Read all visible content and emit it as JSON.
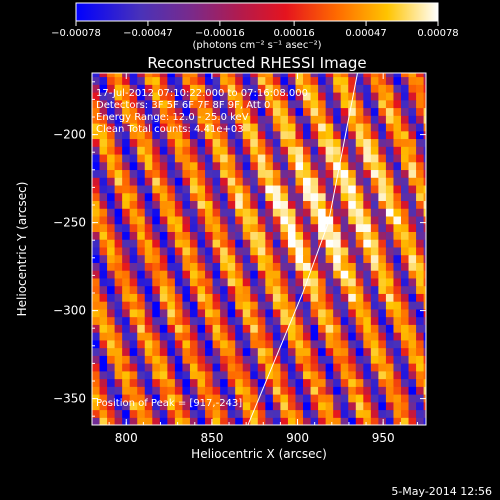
{
  "chart_data": {
    "type": "heatmap",
    "title": "Reconstructed RHESSI Image",
    "xlabel": "Heliocentric X (arcsec)",
    "ylabel": "Heliocentric Y (arcsec)",
    "xlim": [
      780,
      975
    ],
    "ylim": [
      -365,
      -165
    ],
    "x_ticks": [
      800,
      850,
      900,
      950
    ],
    "y_ticks": [
      -200,
      -250,
      -300,
      -350
    ],
    "x_tick_labels": [
      "800",
      "850",
      "900",
      "950"
    ],
    "y_tick_labels": [
      "−200",
      "−250",
      "−300",
      "−350"
    ],
    "colorbar": {
      "ticks": [
        -0.00078,
        -0.00047,
        -0.00016,
        0.00016,
        0.00047,
        0.00078
      ],
      "tick_labels": [
        "−0.00078",
        "−0.00047",
        "−0.00016",
        "0.00016",
        "0.00047",
        "0.00078"
      ],
      "units_line": "(photons cm⁻² s⁻¹ asec⁻²)",
      "range": [
        -0.00078,
        0.00078
      ]
    },
    "annotations": {
      "time_range": "17-Jul-2012 07:10:22.000 to 07:16:08.000",
      "detectors": "Detectors: 3F 5F 6F 7F 8F 9F, Att 0",
      "energy": "Energy Range: 12.0 - 25.0 keV",
      "method": "Clean    Total counts: 4.41e+03",
      "peak": "Position of Peak = [917,-243]"
    },
    "limb_line": [
      [
        871,
        -365
      ],
      [
        903,
        -290
      ],
      [
        918,
        -250
      ],
      [
        935,
        -165
      ]
    ],
    "peak_position": [
      917,
      -243
    ],
    "grid": false,
    "colormap": "blue-purple-red-orange-yellow-white"
  },
  "footer": {
    "date": "5-May-2014 12:56"
  }
}
